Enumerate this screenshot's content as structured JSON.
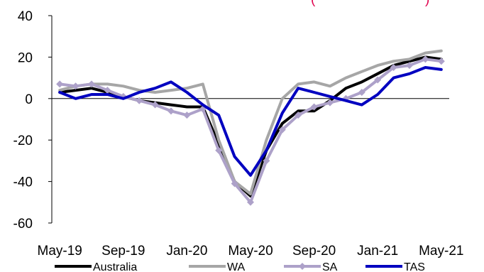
{
  "chart_data": {
    "type": "line",
    "title": "",
    "xlabel": "",
    "ylabel": "",
    "ylim": [
      -60,
      40
    ],
    "yticks": [
      40,
      20,
      0,
      -20,
      -40,
      -60
    ],
    "grid": "none",
    "legend": "bottom",
    "annotation": "(",
    "annotation_tail": ")",
    "x": [
      "May-19",
      "Jun-19",
      "Jul-19",
      "Aug-19",
      "Sep-19",
      "Oct-19",
      "Nov-19",
      "Dec-19",
      "Jan-20",
      "Feb-20",
      "Mar-20",
      "Apr-20",
      "May-20",
      "Jun-20",
      "Jul-20",
      "Aug-20",
      "Sep-20",
      "Oct-20",
      "Nov-20",
      "Dec-20",
      "Jan-21",
      "Feb-21",
      "Mar-21",
      "Apr-21",
      "May-21"
    ],
    "xtick_labels": [
      "May-19",
      "Sep-19",
      "Jan-20",
      "May-20",
      "Sep-20",
      "Jan-21",
      "May-21"
    ],
    "xtick_indices": [
      0,
      4,
      8,
      12,
      16,
      20,
      24
    ],
    "series": [
      {
        "name": "Australia",
        "color": "#000000",
        "marker": "none",
        "values": [
          3,
          4,
          5,
          3,
          1,
          -1,
          -2,
          -3,
          -4,
          -4,
          -22,
          -40,
          -47,
          -25,
          -12,
          -6,
          -6,
          -1,
          5,
          8,
          12,
          16,
          18,
          20,
          19
        ]
      },
      {
        "name": "WA",
        "color": "#a6a6a6",
        "marker": "none",
        "values": [
          4,
          6,
          7,
          7,
          6,
          4,
          3,
          4,
          5,
          7,
          -20,
          -40,
          -46,
          -20,
          0,
          7,
          8,
          6,
          10,
          13,
          16,
          18,
          19,
          22,
          23
        ]
      },
      {
        "name": "SA",
        "color": "#ada1c9",
        "marker": "diamond",
        "values": [
          7,
          6,
          7,
          4,
          1,
          -1,
          -3,
          -6,
          -8,
          -5,
          -25,
          -41,
          -50,
          -30,
          -15,
          -8,
          -4,
          -2,
          0,
          3,
          9,
          15,
          16,
          19,
          18
        ]
      },
      {
        "name": "TAS",
        "color": "#0000c0",
        "marker": "none",
        "values": [
          3,
          0,
          2,
          2,
          0,
          3,
          5,
          8,
          3,
          -3,
          -8,
          -28,
          -37,
          -25,
          -7,
          5,
          3,
          1,
          -1,
          -3,
          2,
          10,
          12,
          15,
          14
        ]
      }
    ]
  }
}
